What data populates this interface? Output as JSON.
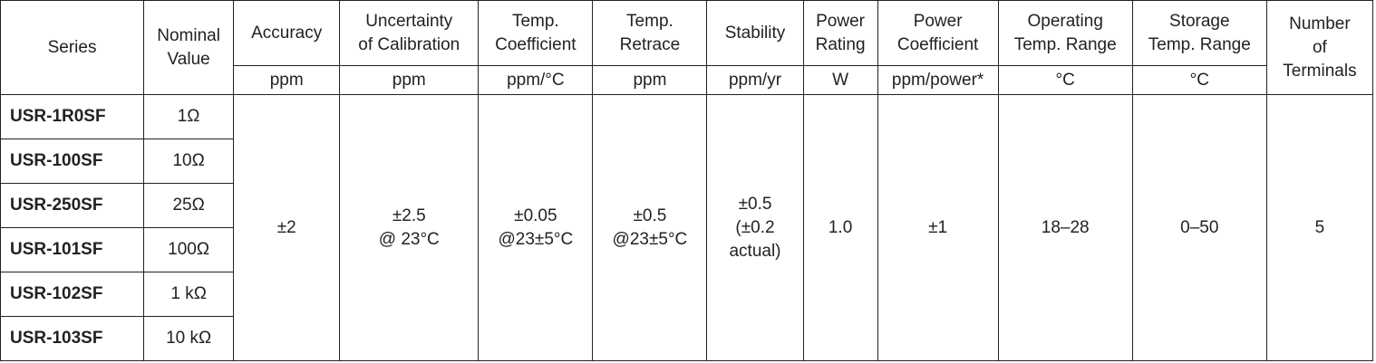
{
  "table": {
    "headers": {
      "series": "Series",
      "nominal_value": [
        "Nominal",
        "Value"
      ],
      "accuracy": "Accuracy",
      "uncertainty": [
        "Uncertainty",
        "of Calibration"
      ],
      "temp_coefficient": [
        "Temp.",
        "Coefficient"
      ],
      "temp_retrace": [
        "Temp.",
        "Retrace"
      ],
      "stability": "Stability",
      "power_rating": [
        "Power",
        "Rating"
      ],
      "power_coefficient": [
        "Power",
        "Coefficient"
      ],
      "operating_temp": [
        "Operating",
        "Temp. Range"
      ],
      "storage_temp": [
        "Storage",
        "Temp. Range"
      ],
      "terminals": [
        "Number",
        "of",
        "Terminals"
      ]
    },
    "units": {
      "accuracy": "ppm",
      "uncertainty": "ppm",
      "temp_coefficient": "ppm/°C",
      "temp_retrace": "ppm",
      "stability": "ppm/yr",
      "power_rating": "W",
      "power_coefficient": "ppm/power*",
      "operating_temp": "°C",
      "storage_temp": "°C"
    },
    "rows": [
      {
        "series": "USR-1R0SF",
        "nominal": "1Ω"
      },
      {
        "series": "USR-100SF",
        "nominal": "10Ω"
      },
      {
        "series": "USR-250SF",
        "nominal": "25Ω"
      },
      {
        "series": "USR-101SF",
        "nominal": "100Ω"
      },
      {
        "series": "USR-102SF",
        "nominal": "1 kΩ"
      },
      {
        "series": "USR-103SF",
        "nominal": "10 kΩ"
      }
    ],
    "shared": {
      "accuracy": "±2",
      "uncertainty": [
        "±2.5",
        "@ 23°C"
      ],
      "temp_coefficient": [
        "±0.05",
        "@23±5°C"
      ],
      "temp_retrace": [
        "±0.5",
        "@23±5°C"
      ],
      "stability": [
        "±0.5",
        "(±0.2",
        "actual)"
      ],
      "power_rating": "1.0",
      "power_coefficient": "±1",
      "operating_temp": "18–28",
      "storage_temp": "0–50",
      "terminals": "5"
    }
  }
}
